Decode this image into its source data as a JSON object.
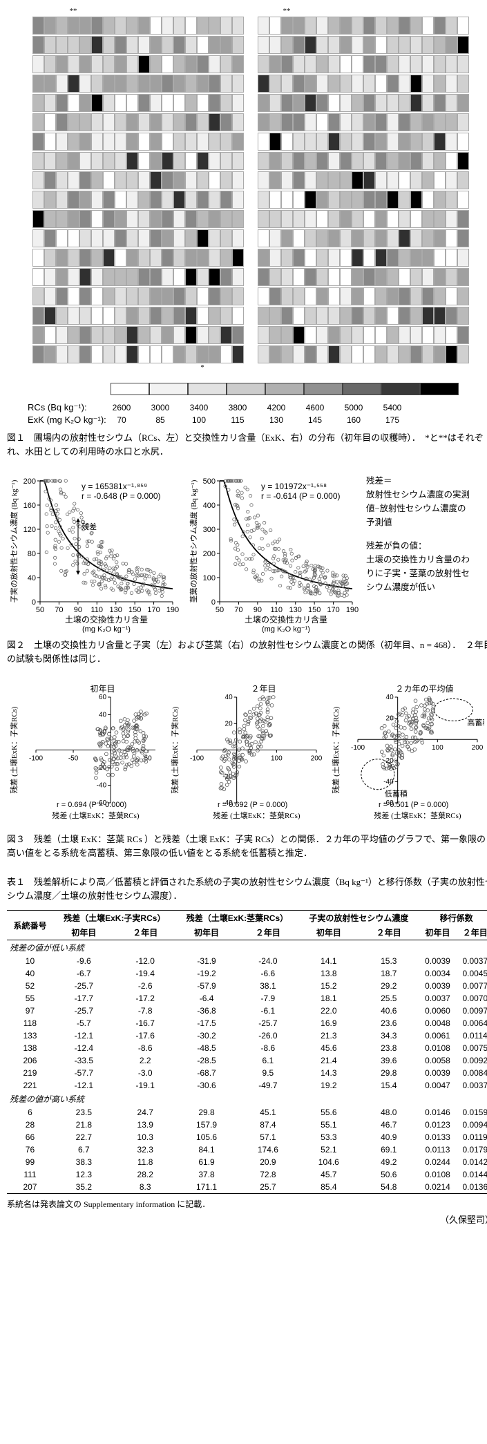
{
  "fig1": {
    "marker_single": "*",
    "marker_double": "**",
    "rows": 18,
    "cols": 18,
    "gray_levels": [
      "#ffffff",
      "#f0f0f0",
      "#e0e0e0",
      "#d0d0d0",
      "#bababa",
      "#a0a0a0",
      "#888888",
      "#606060",
      "#303030",
      "#000000"
    ],
    "legend_rcs_label": "RCs (Bq kg⁻¹):",
    "legend_exk_label": "ExK (mg K₂O kg⁻¹):",
    "rcs_ticks": [
      "2600",
      "3000",
      "3400",
      "3800",
      "4200",
      "4600",
      "5000",
      "5400"
    ],
    "exk_ticks": [
      "70",
      "85",
      "100",
      "115",
      "130",
      "145",
      "160",
      "175"
    ],
    "caption": "図１　圃場内の放射性セシウム（RCs、左）と交換性カリ含量（ExK、右）の分布（初年目の収穫時）．　*と**はそれぞれ、水田としての利用時の水口と水尻．"
  },
  "fig2": {
    "left": {
      "eq": "y = 165381x⁻¹·⁸⁵⁹",
      "r": "r = -0.648 (P = 0.000)",
      "ylabel": "子実の放射性セシウム濃度 (Bq kg⁻¹)",
      "xlabel": "土壌の交換性カリ含量",
      "xunit": "(mg K₂O kg⁻¹)",
      "resid_label": "残差",
      "yticks": [
        "0",
        "40",
        "80",
        "120",
        "160",
        "200"
      ],
      "xticks": [
        "50",
        "70",
        "90",
        "110",
        "130",
        "150",
        "170",
        "190"
      ]
    },
    "right": {
      "eq": "y = 101972x⁻¹·⁵⁵⁸",
      "r": "r = -0.614 (P = 0.000)",
      "ylabel": "茎葉の放射性セシウム濃度 (Bq kg⁻¹)",
      "xlabel": "土壌の交換性カリ含量",
      "xunit": "(mg K₂O kg⁻¹)",
      "yticks": [
        "0",
        "100",
        "200",
        "300",
        "400",
        "500"
      ],
      "xticks": [
        "50",
        "70",
        "90",
        "110",
        "130",
        "150",
        "170",
        "190"
      ]
    },
    "side_heading": "残差＝",
    "side_text1": "放射性セシウム濃度の実測値−放射性セシウム濃度の予測値",
    "side_heading2": "残差が負の値：",
    "side_text2": "土壌の交換性カリ含量のわりに子実・茎葉の放射性セシウム濃度が低い",
    "caption": "図２　土壌の交換性カリ含量と子実（左）および茎葉（右）の放射性セシウム濃度との関係（初年目、n = 468）．　２年目の試験も関係性は同じ．"
  },
  "fig3": {
    "panels": [
      {
        "title": "初年目",
        "r": "r = 0.694 (P = 0.000)",
        "xlim": [
          -100,
          60
        ],
        "ylim": [
          -60,
          60
        ]
      },
      {
        "title": "２年目",
        "r": "r = 0.692 (P = 0.000)",
        "xlim": [
          -100,
          200
        ],
        "ylim": [
          -40,
          40
        ]
      },
      {
        "title": "２カ年の平均値",
        "r": "r = 0.501 (P = 0.000)",
        "xlim": [
          -100,
          200
        ],
        "ylim": [
          -60,
          40
        ],
        "hi": "高蓄積",
        "lo": "低蓄積"
      }
    ],
    "ylabel": "残差 (土壌ExK：子実RCs)",
    "xlabel": "残差 (土壌ExK：茎葉RCs)",
    "caption": "図３　残差（土壌 ExK：茎葉 RCs ）と残差（土壌 ExK：子実 RCs）との関係．２カ年の平均値のグラフで、第一象限の高い値をとる系統を高蓄積、第三象限の低い値をとる系統を低蓄積と推定．"
  },
  "table1": {
    "caption": "表１　残差解析により高／低蓄積と評価された系統の子実の放射性セシウム濃度（Bq kg⁻¹）と移行係数（子実の放射性セシウム濃度／土壌の放射性セシウム濃度）．",
    "col_group_headers": [
      "系統番号",
      "残差（土壌ExK:子実RCs）",
      "残差（土壌ExK:茎葉RCs）",
      "子実の放射性セシウム濃度",
      "移行係数"
    ],
    "sub_headers": [
      "",
      "初年目",
      "２年目",
      "初年目",
      "２年目",
      "初年目",
      "２年目",
      "初年目",
      "２年目"
    ],
    "section_low": "残差の値が低い系統",
    "section_high": "残差の値が高い系統",
    "rows_low": [
      [
        "10",
        "-9.6",
        "-12.0",
        "-31.9",
        "-24.0",
        "14.1",
        "15.3",
        "0.0039",
        "0.0037"
      ],
      [
        "40",
        "-6.7",
        "-19.4",
        "-19.2",
        "-6.6",
        "13.8",
        "18.7",
        "0.0034",
        "0.0045"
      ],
      [
        "52",
        "-25.7",
        "-2.6",
        "-57.9",
        "38.1",
        "15.2",
        "29.2",
        "0.0039",
        "0.0077"
      ],
      [
        "55",
        "-17.7",
        "-17.2",
        "-6.4",
        "-7.9",
        "18.1",
        "25.5",
        "0.0037",
        "0.0070"
      ],
      [
        "97",
        "-25.7",
        "-7.8",
        "-36.8",
        "-6.1",
        "22.0",
        "40.6",
        "0.0060",
        "0.0097"
      ],
      [
        "118",
        "-5.7",
        "-16.7",
        "-17.5",
        "-25.7",
        "16.9",
        "23.6",
        "0.0048",
        "0.0064"
      ],
      [
        "133",
        "-12.1",
        "-17.6",
        "-30.2",
        "-26.0",
        "21.3",
        "34.3",
        "0.0061",
        "0.0114"
      ],
      [
        "138",
        "-12.4",
        "-8.6",
        "-48.5",
        "-8.6",
        "45.6",
        "23.8",
        "0.0108",
        "0.0075"
      ],
      [
        "206",
        "-33.5",
        "2.2",
        "-28.5",
        "6.1",
        "21.4",
        "39.6",
        "0.0058",
        "0.0092"
      ],
      [
        "219",
        "-57.7",
        "-3.0",
        "-68.7",
        "9.5",
        "14.3",
        "29.8",
        "0.0039",
        "0.0084"
      ],
      [
        "221",
        "-12.1",
        "-19.1",
        "-30.6",
        "-49.7",
        "19.2",
        "15.4",
        "0.0047",
        "0.0037"
      ]
    ],
    "rows_high": [
      [
        "6",
        "23.5",
        "24.7",
        "29.8",
        "45.1",
        "55.6",
        "48.0",
        "0.0146",
        "0.0159"
      ],
      [
        "28",
        "21.8",
        "13.9",
        "157.9",
        "87.4",
        "55.1",
        "46.7",
        "0.0123",
        "0.0094"
      ],
      [
        "66",
        "22.7",
        "10.3",
        "105.6",
        "57.1",
        "53.3",
        "40.9",
        "0.0133",
        "0.0119"
      ],
      [
        "76",
        "6.7",
        "32.3",
        "84.1",
        "174.6",
        "52.1",
        "69.1",
        "0.0113",
        "0.0179"
      ],
      [
        "99",
        "38.3",
        "11.8",
        "61.9",
        "20.9",
        "104.6",
        "49.2",
        "0.0244",
        "0.0142"
      ],
      [
        "111",
        "12.3",
        "28.2",
        "37.8",
        "72.8",
        "45.7",
        "50.6",
        "0.0108",
        "0.0144"
      ],
      [
        "207",
        "35.2",
        "8.3",
        "171.1",
        "25.7",
        "85.4",
        "54.8",
        "0.0214",
        "0.0136"
      ]
    ],
    "footnote": "系統名は発表論文の Supplementary information に記載．",
    "author": "（久保堅司）"
  }
}
